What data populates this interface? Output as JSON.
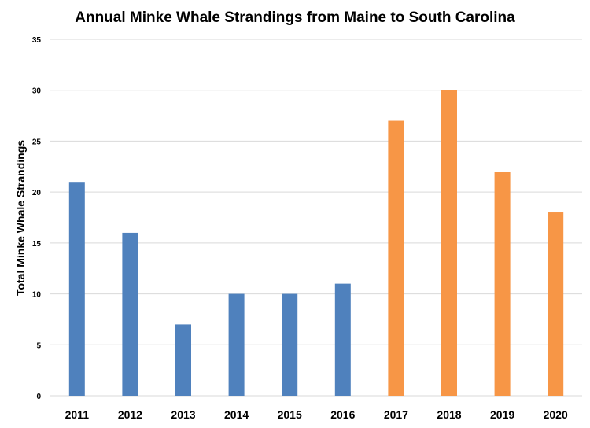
{
  "chart_data": {
    "type": "bar",
    "title": "Annual Minke Whale Strandings from Maine to South Carolina",
    "xlabel": "",
    "ylabel": "Total Minke Whale Strandings",
    "categories": [
      "2011",
      "2012",
      "2013",
      "2014",
      "2015",
      "2016",
      "2017",
      "2018",
      "2019",
      "2020"
    ],
    "values": [
      21,
      16,
      7,
      10,
      10,
      11,
      27,
      30,
      22,
      18
    ],
    "bar_colors": [
      "#4f81bd",
      "#4f81bd",
      "#4f81bd",
      "#4f81bd",
      "#4f81bd",
      "#4f81bd",
      "#f79646",
      "#f79646",
      "#f79646",
      "#f79646"
    ],
    "ylim": [
      0,
      35
    ],
    "yticks": [
      0,
      5,
      10,
      15,
      20,
      25,
      30,
      35
    ],
    "grid": true,
    "gridline_color": "#d9d9d9",
    "legend": "none"
  }
}
